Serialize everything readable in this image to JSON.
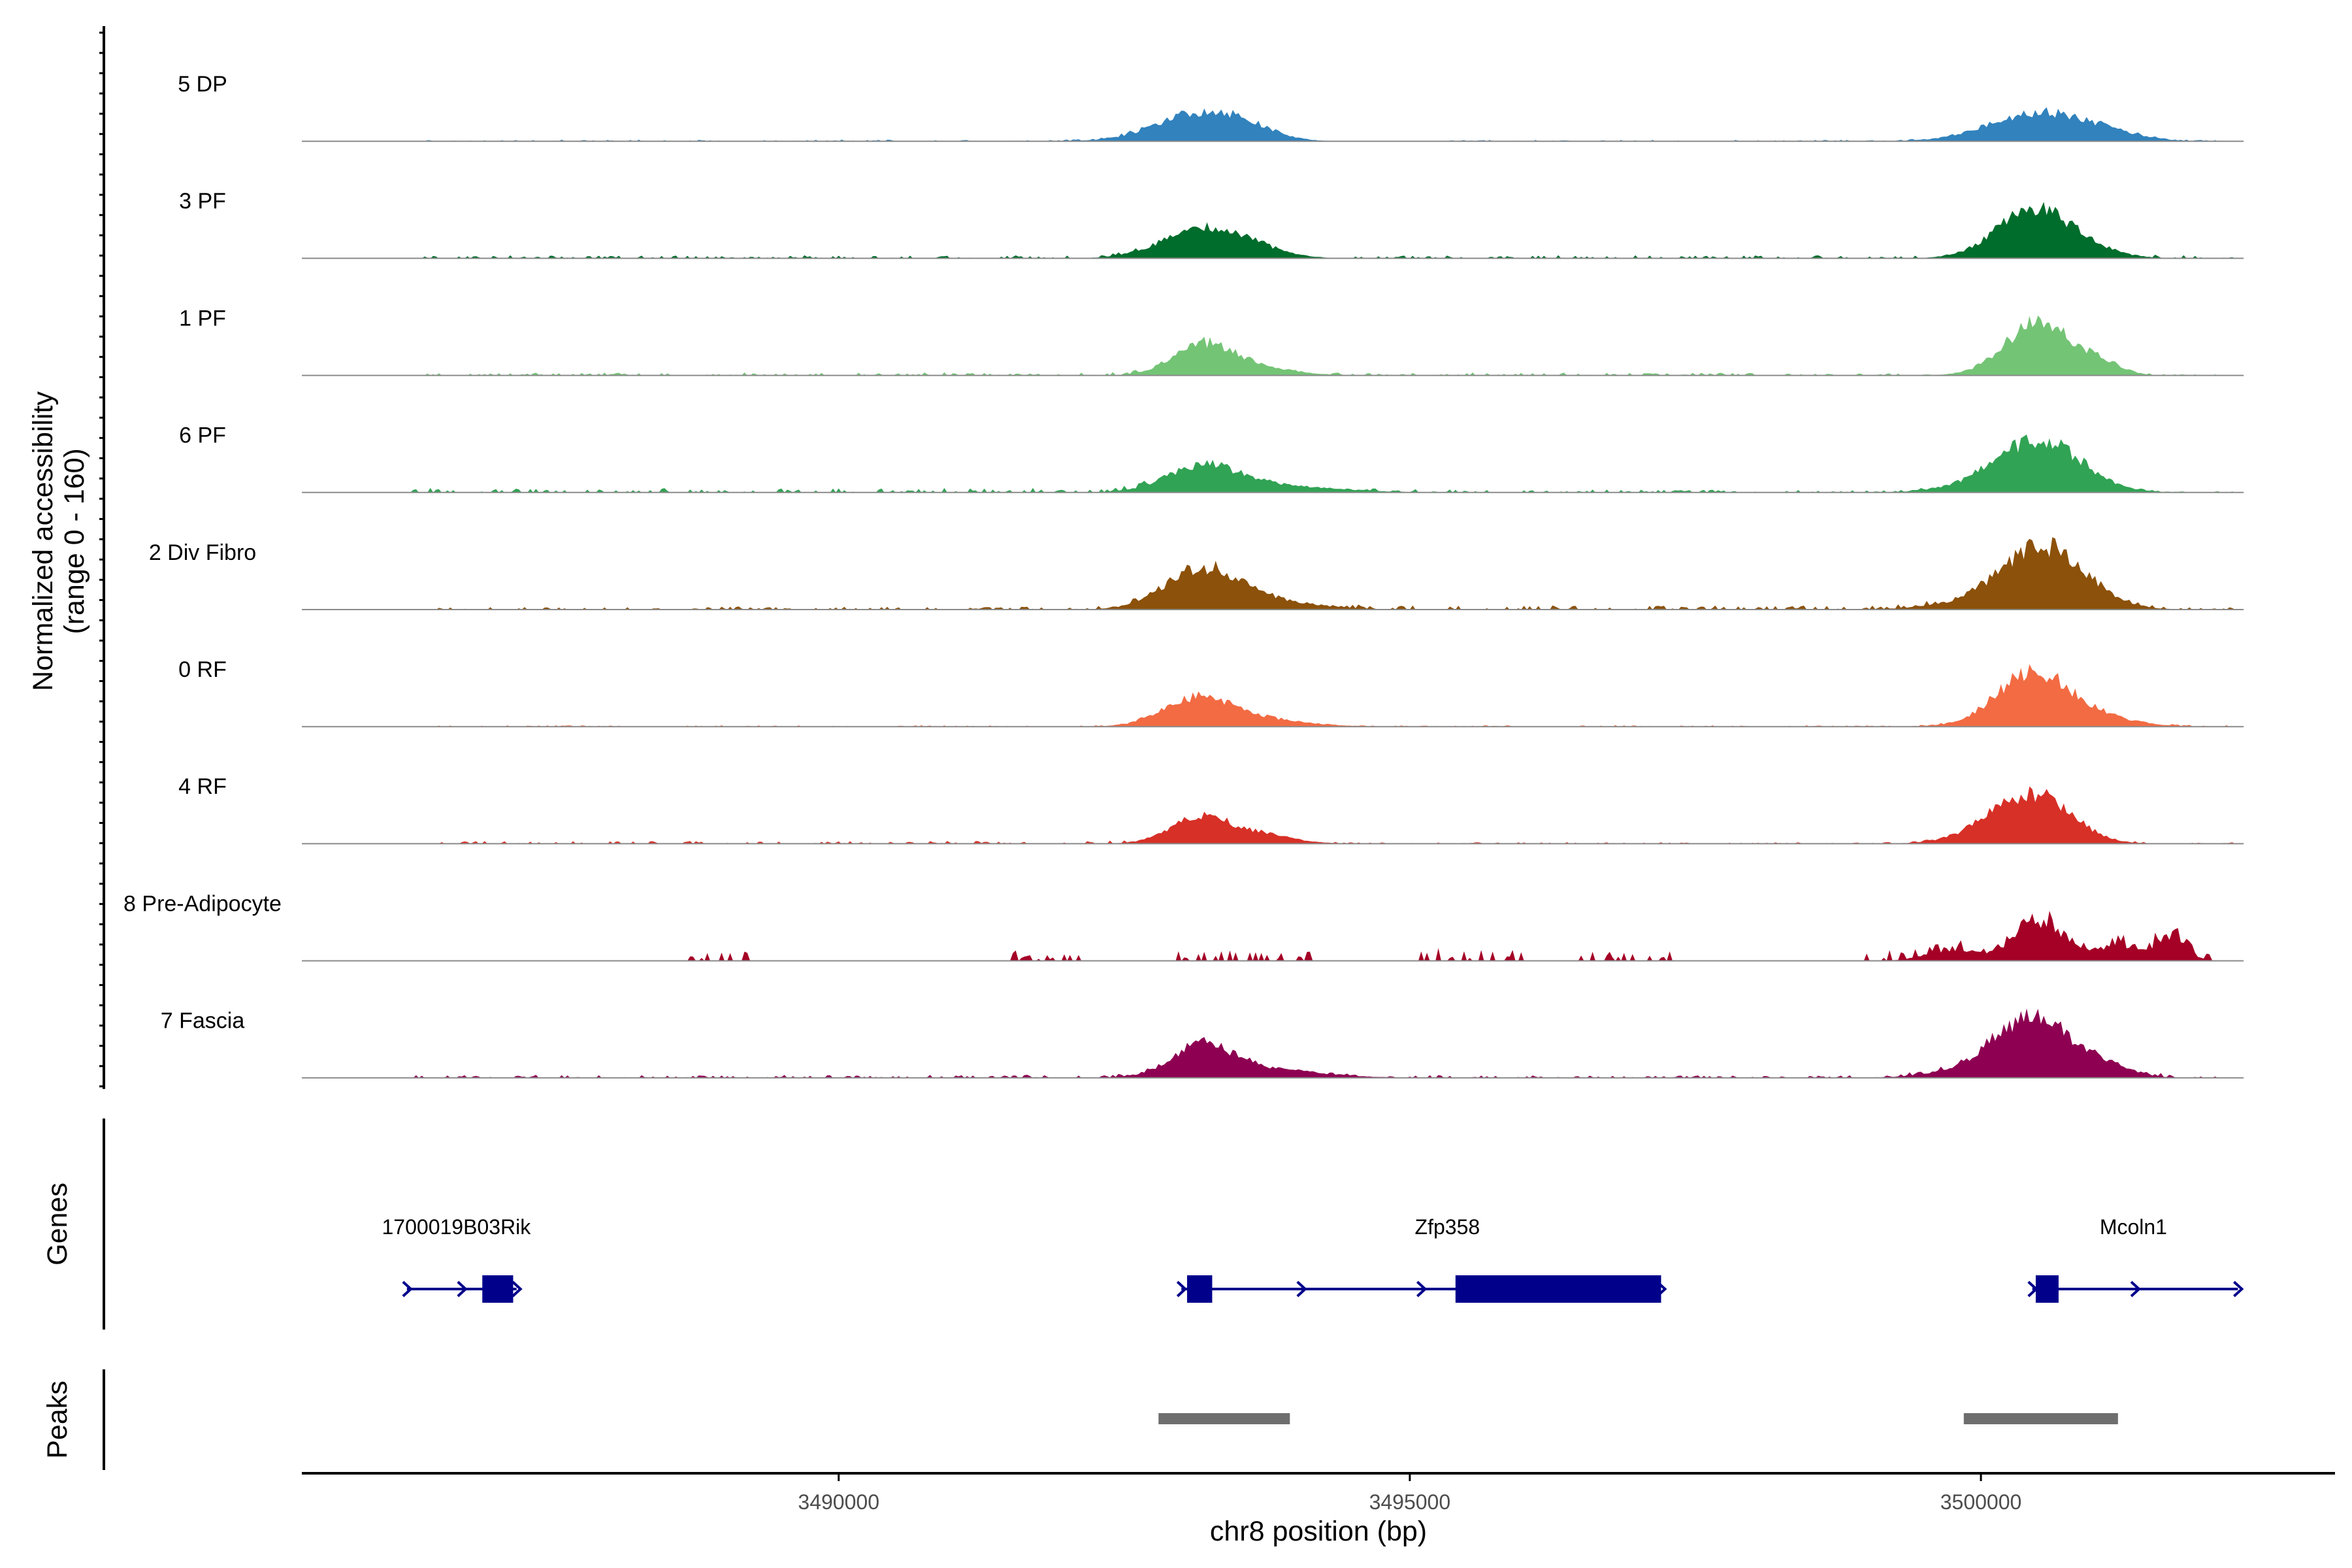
{
  "chart_data": {
    "type": "area",
    "title": "",
    "coverage": {
      "ylabel_line1": "Normalized accessibility",
      "ylabel_line2": "(range 0 - 160)",
      "ylim": [
        0,
        160
      ],
      "tracks": [
        {
          "name": "5 DP",
          "color": "#3182BD",
          "peaks": [
            [
              3493150,
              40,
              380
            ],
            [
              3493550,
              12,
              260
            ],
            [
              3500500,
              42,
              420
            ],
            [
              3501100,
              8,
              280
            ]
          ],
          "noise": [
            [
              3486300,
              3492800,
              1
            ],
            [
              3495200,
              3499800,
              1
            ],
            [
              3501300,
              3502200,
              1
            ]
          ]
        },
        {
          "name": "3 PF",
          "color": "#006D2C",
          "peaks": [
            [
              3493200,
              42,
              360
            ],
            [
              3493600,
              8,
              300
            ],
            [
              3500450,
              70,
              320
            ],
            [
              3500900,
              10,
              300
            ]
          ],
          "noise": [
            [
              3486300,
              3492600,
              2
            ],
            [
              3494500,
              3499700,
              2
            ],
            [
              3501200,
              3502200,
              2
            ]
          ]
        },
        {
          "name": "1 PF",
          "color": "#74C476",
          "peaks": [
            [
              3493180,
              44,
              260
            ],
            [
              3493650,
              12,
              320
            ],
            [
              3500520,
              78,
              300
            ],
            [
              3501100,
              12,
              160
            ]
          ],
          "noise": [
            [
              3486400,
              3492800,
              2
            ],
            [
              3494200,
              3499600,
              2
            ],
            [
              3501400,
              3502200,
              1
            ]
          ]
        },
        {
          "name": "6 PF",
          "color": "#31A354",
          "peaks": [
            [
              3493200,
              38,
              320
            ],
            [
              3493900,
              9,
              500
            ],
            [
              3500540,
              70,
              360
            ],
            [
              3500150,
              12,
              400
            ]
          ],
          "noise": [
            [
              3486200,
              3492700,
              3
            ],
            [
              3494600,
              3499600,
              2
            ],
            [
              3501400,
              3502200,
              1
            ]
          ]
        },
        {
          "name": "2 Div Fibro",
          "color": "#8C510A",
          "peaks": [
            [
              3493180,
              58,
              320
            ],
            [
              3493750,
              12,
              420
            ],
            [
              3500560,
              88,
              360
            ],
            [
              3500100,
              10,
              450
            ]
          ],
          "noise": [
            [
              3486500,
              3492800,
              2
            ],
            [
              3494300,
              3499600,
              3
            ],
            [
              3501300,
              3502200,
              2
            ]
          ]
        },
        {
          "name": "0 RF",
          "color": "#F26B43",
          "peaks": [
            [
              3493150,
              40,
              300
            ],
            [
              3493700,
              10,
              400
            ],
            [
              3500450,
              76,
              320
            ],
            [
              3501000,
              12,
              350
            ]
          ],
          "noise": [
            [
              3486500,
              3492800,
              1
            ],
            [
              3494500,
              3499700,
              1
            ],
            [
              3501400,
              3502200,
              1
            ]
          ]
        },
        {
          "name": "4 RF",
          "color": "#D73027",
          "peaks": [
            [
              3493150,
              36,
              260
            ],
            [
              3493650,
              14,
              300
            ],
            [
              3500480,
              68,
              320
            ],
            [
              3500050,
              14,
              300
            ]
          ],
          "noise": [
            [
              3486500,
              3492700,
              2
            ],
            [
              3494300,
              3499700,
              1
            ],
            [
              3501300,
              3502200,
              1
            ]
          ]
        },
        {
          "name": "8 Pre-Adipocyte",
          "color": "#A50026",
          "peaks": [
            [
              3500520,
              58,
              220
            ],
            [
              3501680,
              36,
              120
            ],
            [
              3501200,
              20,
              200
            ],
            [
              3499750,
              16,
              220
            ]
          ],
          "noise": [
            [
              3488700,
              3489200,
              7
            ],
            [
              3491500,
              3492200,
              7
            ],
            [
              3492800,
              3494200,
              8
            ],
            [
              3495100,
              3496000,
              9
            ],
            [
              3496500,
              3497300,
              8
            ],
            [
              3499000,
              3502000,
              8
            ]
          ]
        },
        {
          "name": "7 Fascia",
          "color": "#8E0152",
          "peaks": [
            [
              3493180,
              42,
              260
            ],
            [
              3493650,
              14,
              500
            ],
            [
              3500460,
              80,
              320
            ],
            [
              3501050,
              18,
              250
            ],
            [
              3500050,
              14,
              400
            ]
          ],
          "noise": [
            [
              3486300,
              3492700,
              2
            ],
            [
              3494300,
              3499700,
              2
            ],
            [
              3501300,
              3502200,
              2
            ]
          ]
        }
      ]
    },
    "genes": {
      "label": "Genes",
      "color": "#00008B",
      "items": [
        {
          "name": "1700019B03Rik",
          "start": 3486220,
          "end": 3487180,
          "exons": [
            [
              3486880,
              3487150
            ]
          ]
        },
        {
          "name": "Zfp358",
          "start": 3493000,
          "end": 3497200,
          "exons": [
            [
              3493050,
              3493270
            ],
            [
              3495400,
              3497200
            ]
          ]
        },
        {
          "name": "Mcoln1",
          "start": 3500450,
          "end": 3502250,
          "exons": [
            [
              3500480,
              3500680
            ]
          ]
        }
      ]
    },
    "peaks": {
      "label": "Peaks",
      "color": "#6E6E6E",
      "regions": [
        [
          3492800,
          3493950
        ],
        [
          3499850,
          3501200
        ]
      ]
    },
    "x_axis": {
      "xlabel": "chr8 position (bp)",
      "xlim": [
        3485300,
        3503100
      ],
      "ticks": [
        3490000,
        3495000,
        3500000
      ],
      "tick_labels": [
        "3490000",
        "3495000",
        "3500000"
      ]
    }
  }
}
